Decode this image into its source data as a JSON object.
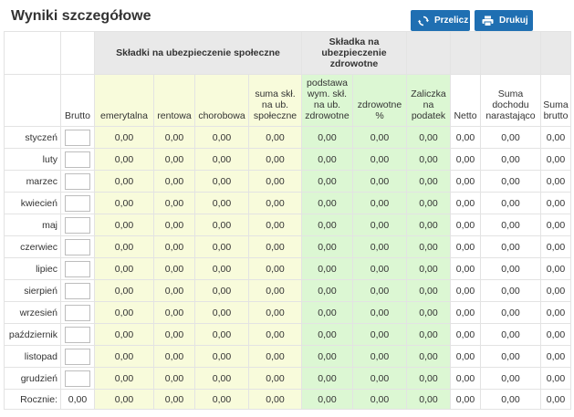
{
  "title": "Wyniki szczegółowe",
  "buttons": {
    "recalc": {
      "label": "Przelicz",
      "icon": "refresh-icon"
    },
    "print": {
      "label": "Drukuj",
      "icon": "printer-icon"
    }
  },
  "colors": {
    "button": "#1f6fb2",
    "social": "#f8fbdb",
    "health": "#dcf7d3",
    "header_grey": "#e9e9e9"
  },
  "group_headers": {
    "social": "Składki na ubezpieczenie społeczne",
    "health": "Składka na ubezpieczenie zdrowotne"
  },
  "columns": {
    "brutto": "Brutto",
    "emerytalna": "emerytalna",
    "rentowa": "rentowa",
    "chorobowa": "chorobowa",
    "suma_spol": "suma skł. na ub. społeczne",
    "podstawa": "podstawa wym. skł. na ub. zdrowotne",
    "zdrowotne": "zdrowotne %",
    "zaliczka": "Zaliczka na podatek",
    "netto": "Netto",
    "suma_dochodu": "Suma dochodu narastająco",
    "suma_brutto": "Suma brutto"
  },
  "months": [
    {
      "name": "styczeń",
      "brutto": "",
      "emerytalna": "0,00",
      "rentowa": "0,00",
      "chorobowa": "0,00",
      "suma_spol": "0,00",
      "podstawa": "0,00",
      "zdrowotne": "0,00",
      "zaliczka": "0,00",
      "netto": "0,00",
      "suma_dochodu": "0,00",
      "suma_brutto": "0,00"
    },
    {
      "name": "luty",
      "brutto": "",
      "emerytalna": "0,00",
      "rentowa": "0,00",
      "chorobowa": "0,00",
      "suma_spol": "0,00",
      "podstawa": "0,00",
      "zdrowotne": "0,00",
      "zaliczka": "0,00",
      "netto": "0,00",
      "suma_dochodu": "0,00",
      "suma_brutto": "0,00"
    },
    {
      "name": "marzec",
      "brutto": "",
      "emerytalna": "0,00",
      "rentowa": "0,00",
      "chorobowa": "0,00",
      "suma_spol": "0,00",
      "podstawa": "0,00",
      "zdrowotne": "0,00",
      "zaliczka": "0,00",
      "netto": "0,00",
      "suma_dochodu": "0,00",
      "suma_brutto": "0,00"
    },
    {
      "name": "kwiecień",
      "brutto": "",
      "emerytalna": "0,00",
      "rentowa": "0,00",
      "chorobowa": "0,00",
      "suma_spol": "0,00",
      "podstawa": "0,00",
      "zdrowotne": "0,00",
      "zaliczka": "0,00",
      "netto": "0,00",
      "suma_dochodu": "0,00",
      "suma_brutto": "0,00"
    },
    {
      "name": "maj",
      "brutto": "",
      "emerytalna": "0,00",
      "rentowa": "0,00",
      "chorobowa": "0,00",
      "suma_spol": "0,00",
      "podstawa": "0,00",
      "zdrowotne": "0,00",
      "zaliczka": "0,00",
      "netto": "0,00",
      "suma_dochodu": "0,00",
      "suma_brutto": "0,00"
    },
    {
      "name": "czerwiec",
      "brutto": "",
      "emerytalna": "0,00",
      "rentowa": "0,00",
      "chorobowa": "0,00",
      "suma_spol": "0,00",
      "podstawa": "0,00",
      "zdrowotne": "0,00",
      "zaliczka": "0,00",
      "netto": "0,00",
      "suma_dochodu": "0,00",
      "suma_brutto": "0,00"
    },
    {
      "name": "lipiec",
      "brutto": "",
      "emerytalna": "0,00",
      "rentowa": "0,00",
      "chorobowa": "0,00",
      "suma_spol": "0,00",
      "podstawa": "0,00",
      "zdrowotne": "0,00",
      "zaliczka": "0,00",
      "netto": "0,00",
      "suma_dochodu": "0,00",
      "suma_brutto": "0,00"
    },
    {
      "name": "sierpień",
      "brutto": "",
      "emerytalna": "0,00",
      "rentowa": "0,00",
      "chorobowa": "0,00",
      "suma_spol": "0,00",
      "podstawa": "0,00",
      "zdrowotne": "0,00",
      "zaliczka": "0,00",
      "netto": "0,00",
      "suma_dochodu": "0,00",
      "suma_brutto": "0,00"
    },
    {
      "name": "wrzesień",
      "brutto": "",
      "emerytalna": "0,00",
      "rentowa": "0,00",
      "chorobowa": "0,00",
      "suma_spol": "0,00",
      "podstawa": "0,00",
      "zdrowotne": "0,00",
      "zaliczka": "0,00",
      "netto": "0,00",
      "suma_dochodu": "0,00",
      "suma_brutto": "0,00"
    },
    {
      "name": "październik",
      "brutto": "",
      "emerytalna": "0,00",
      "rentowa": "0,00",
      "chorobowa": "0,00",
      "suma_spol": "0,00",
      "podstawa": "0,00",
      "zdrowotne": "0,00",
      "zaliczka": "0,00",
      "netto": "0,00",
      "suma_dochodu": "0,00",
      "suma_brutto": "0,00"
    },
    {
      "name": "listopad",
      "brutto": "",
      "emerytalna": "0,00",
      "rentowa": "0,00",
      "chorobowa": "0,00",
      "suma_spol": "0,00",
      "podstawa": "0,00",
      "zdrowotne": "0,00",
      "zaliczka": "0,00",
      "netto": "0,00",
      "suma_dochodu": "0,00",
      "suma_brutto": "0,00"
    },
    {
      "name": "grudzień",
      "brutto": "",
      "emerytalna": "0,00",
      "rentowa": "0,00",
      "chorobowa": "0,00",
      "suma_spol": "0,00",
      "podstawa": "0,00",
      "zdrowotne": "0,00",
      "zaliczka": "0,00",
      "netto": "0,00",
      "suma_dochodu": "0,00",
      "suma_brutto": "0,00"
    }
  ],
  "totals": {
    "label": "Rocznie:",
    "brutto": "0,00",
    "emerytalna": "0,00",
    "rentowa": "0,00",
    "chorobowa": "0,00",
    "suma_spol": "0,00",
    "podstawa": "0,00",
    "zdrowotne": "0,00",
    "zaliczka": "0,00",
    "netto": "0,00",
    "suma_dochodu": "0,00",
    "suma_brutto": "0,00"
  }
}
